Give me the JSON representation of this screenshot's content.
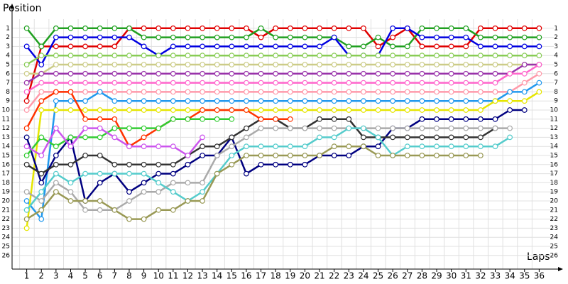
{
  "chart_data": {
    "type": "line",
    "y_label": "Position",
    "x_label": "Laps",
    "x": [
      1,
      2,
      3,
      4,
      5,
      6,
      7,
      8,
      9,
      10,
      11,
      12,
      13,
      14,
      15,
      16,
      17,
      18,
      19,
      20,
      21,
      22,
      23,
      24,
      25,
      26,
      27,
      28,
      29,
      30,
      31,
      32,
      33,
      34,
      35,
      36
    ],
    "xlim": [
      0,
      37
    ],
    "xticks": [
      1,
      2,
      3,
      4,
      5,
      6,
      7,
      8,
      9,
      10,
      11,
      12,
      13,
      14,
      15,
      16,
      17,
      18,
      19,
      20,
      21,
      22,
      23,
      24,
      25,
      26,
      27,
      28,
      29,
      30,
      31,
      32,
      33,
      34,
      35,
      36
    ],
    "ylim": [
      0,
      27.5
    ],
    "y_inverted": true,
    "yticks": [
      1,
      2,
      3,
      4,
      5,
      6,
      7,
      8,
      9,
      10,
      11,
      12,
      13,
      14,
      15,
      16,
      17,
      18,
      19,
      20,
      21,
      22,
      23,
      24,
      25,
      26
    ],
    "grid": true,
    "series": [
      {
        "color": "#e00000",
        "values": [
          9,
          3,
          3,
          3,
          3,
          3,
          3,
          1,
          1,
          1,
          1,
          1,
          1,
          1,
          1,
          1,
          2,
          1,
          1,
          1,
          1,
          1,
          1,
          1,
          3,
          2,
          1,
          3,
          3,
          3,
          3,
          1,
          1,
          1,
          1,
          1
        ]
      },
      {
        "color": "#20a020",
        "values": [
          1,
          3,
          1,
          1,
          1,
          1,
          1,
          1,
          2,
          2,
          2,
          2,
          2,
          2,
          2,
          2,
          1,
          2,
          2,
          2,
          2,
          2,
          3,
          3,
          2,
          3,
          3,
          1,
          1,
          1,
          1,
          2,
          2,
          2,
          2,
          2
        ]
      },
      {
        "color": "#0000e0",
        "values": [
          3,
          5,
          2,
          2,
          2,
          2,
          2,
          2,
          3,
          4,
          3,
          3,
          3,
          3,
          3,
          3,
          3,
          3,
          3,
          3,
          3,
          2,
          4,
          4,
          4,
          1,
          1,
          2,
          2,
          2,
          2,
          3,
          3,
          3,
          3,
          3
        ]
      },
      {
        "color": "#88cc55",
        "values": [
          5,
          4,
          4,
          4,
          4,
          4,
          4,
          4,
          4,
          4,
          4,
          4,
          4,
          4,
          4,
          4,
          4,
          4,
          4,
          4,
          4,
          4,
          4,
          4,
          4,
          4,
          4,
          4,
          4,
          4,
          4,
          4,
          4,
          4,
          4,
          4
        ]
      },
      {
        "color": "#cccc88",
        "values": [
          6,
          6,
          5,
          5,
          5,
          5,
          5,
          5,
          5,
          5,
          5,
          5,
          5,
          5,
          5,
          5,
          5,
          5,
          5,
          5,
          5,
          5,
          5,
          5,
          5,
          5,
          5,
          5,
          5,
          5,
          5,
          5,
          5,
          5,
          5,
          5
        ]
      },
      {
        "color": "#9933aa",
        "values": [
          7,
          6,
          6,
          6,
          6,
          6,
          6,
          6,
          6,
          6,
          6,
          6,
          6,
          6,
          6,
          6,
          6,
          6,
          6,
          6,
          6,
          6,
          6,
          6,
          6,
          6,
          6,
          6,
          6,
          6,
          6,
          6,
          6,
          6,
          5,
          5
        ]
      },
      {
        "color": "#ff66cc",
        "values": [
          8,
          7,
          7,
          7,
          7,
          7,
          7,
          7,
          7,
          7,
          7,
          7,
          7,
          7,
          7,
          7,
          7,
          7,
          7,
          7,
          7,
          7,
          7,
          7,
          7,
          7,
          7,
          7,
          7,
          7,
          7,
          7,
          7,
          6,
          6,
          5
        ]
      },
      {
        "color": "#ff99aa",
        "values": [
          10,
          8,
          8,
          8,
          8,
          8,
          8,
          8,
          8,
          8,
          8,
          8,
          8,
          8,
          8,
          8,
          8,
          8,
          8,
          8,
          8,
          8,
          8,
          8,
          8,
          8,
          8,
          8,
          8,
          8,
          8,
          8,
          8,
          8,
          7,
          6
        ]
      },
      {
        "color": "#2299ee",
        "values": [
          20,
          22,
          9,
          9,
          9,
          8,
          9,
          9,
          9,
          9,
          9,
          9,
          9,
          9,
          9,
          9,
          9,
          9,
          9,
          9,
          9,
          9,
          9,
          9,
          9,
          9,
          9,
          9,
          9,
          9,
          9,
          9,
          9,
          8,
          8,
          7
        ]
      },
      {
        "color": "#e6e600",
        "values": [
          23,
          10,
          10,
          10,
          10,
          10,
          10,
          10,
          10,
          10,
          10,
          10,
          10,
          10,
          10,
          10,
          10,
          10,
          10,
          10,
          10,
          10,
          10,
          10,
          10,
          10,
          10,
          10,
          10,
          10,
          10,
          10,
          9,
          9,
          9,
          8
        ]
      },
      {
        "color": "#000080",
        "values": [
          13,
          18,
          15,
          13,
          20,
          18,
          17,
          19,
          18,
          17,
          17,
          16,
          15,
          15,
          13,
          17,
          16,
          16,
          16,
          16,
          15,
          15,
          15,
          14,
          14,
          12,
          12,
          11,
          11,
          11,
          11,
          11,
          11,
          10,
          10,
          null
        ]
      },
      {
        "color": "#333333",
        "values": [
          16,
          17,
          16,
          16,
          15,
          15,
          16,
          16,
          16,
          16,
          16,
          15,
          14,
          14,
          13,
          12,
          11,
          11,
          12,
          12,
          11,
          11,
          11,
          13,
          13,
          13,
          13,
          13,
          13,
          13,
          13,
          13,
          12,
          null,
          null,
          null
        ]
      },
      {
        "color": "#aaaaaa",
        "values": [
          19,
          20,
          18,
          19,
          21,
          21,
          21,
          20,
          19,
          19,
          18,
          18,
          18,
          15,
          14,
          13,
          12,
          12,
          12,
          12,
          12,
          12,
          12,
          12,
          12,
          12,
          12,
          12,
          12,
          12,
          12,
          12,
          12,
          12,
          null,
          null
        ]
      },
      {
        "color": "#55cccc",
        "values": [
          21,
          19,
          17,
          18,
          17,
          17,
          17,
          17,
          17,
          18,
          19,
          20,
          19,
          17,
          15,
          14,
          14,
          14,
          14,
          14,
          13,
          13,
          12,
          12,
          13,
          15,
          14,
          14,
          14,
          14,
          14,
          14,
          14,
          13,
          null,
          null
        ]
      },
      {
        "color": "#999955",
        "values": [
          22,
          21,
          19,
          20,
          20,
          20,
          21,
          22,
          22,
          21,
          21,
          20,
          20,
          17,
          16,
          15,
          15,
          15,
          15,
          15,
          15,
          14,
          14,
          14,
          15,
          15,
          15,
          15,
          15,
          15,
          15,
          15,
          null,
          null,
          null,
          null
        ]
      },
      {
        "color": "#ff3300",
        "values": [
          12,
          9,
          8,
          8,
          11,
          11,
          11,
          14,
          13,
          12,
          11,
          11,
          10,
          10,
          10,
          10,
          11,
          11,
          11,
          null,
          null,
          null,
          null,
          null,
          null,
          null,
          null,
          null,
          null,
          null,
          null,
          null,
          null,
          null,
          null,
          null
        ]
      },
      {
        "color": "#33cc33",
        "values": [
          15,
          13,
          14,
          13,
          13,
          13,
          12,
          12,
          12,
          12,
          11,
          11,
          11,
          11,
          11,
          null,
          null,
          null,
          null,
          null,
          null,
          null,
          null,
          null,
          null,
          null,
          null,
          null,
          null,
          null,
          null,
          null,
          null,
          null,
          null,
          null
        ]
      },
      {
        "color": "#cc55ee",
        "values": [
          14,
          15,
          12,
          14,
          12,
          12,
          13,
          14,
          14,
          14,
          14,
          15,
          13,
          null,
          null,
          null,
          null,
          null,
          null,
          null,
          null,
          null,
          null,
          null,
          null,
          null,
          null,
          null,
          null,
          null,
          null,
          null,
          null,
          null,
          null,
          null
        ]
      }
    ]
  }
}
